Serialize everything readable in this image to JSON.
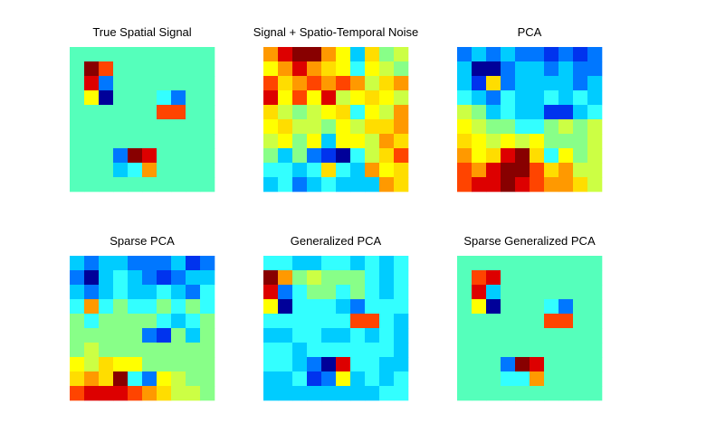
{
  "chart_data": [
    {
      "type": "heatmap",
      "title": "True Spatial Signal",
      "colors": [
        [
          "#5fb",
          "#5fb",
          "#5fb",
          "#5fb",
          "#5fb",
          "#5fb",
          "#5fb",
          "#5fb",
          "#5fb",
          "#5fb"
        ],
        [
          "#5fb",
          "#800",
          "#f40",
          "#5fb",
          "#5fb",
          "#5fb",
          "#5fb",
          "#5fb",
          "#5fb",
          "#5fb"
        ],
        [
          "#5fb",
          "#d00",
          "#07f",
          "#5fb",
          "#5fb",
          "#5fb",
          "#5fb",
          "#5fb",
          "#5fb",
          "#5fb"
        ],
        [
          "#5fb",
          "#ff0",
          "#009",
          "#5fb",
          "#5fb",
          "#5fb",
          "#3ff",
          "#07f",
          "#5fb",
          "#5fb"
        ],
        [
          "#5fb",
          "#5fb",
          "#5fb",
          "#5fb",
          "#5fb",
          "#5fb",
          "#f40",
          "#f40",
          "#5fb",
          "#5fb"
        ],
        [
          "#5fb",
          "#5fb",
          "#5fb",
          "#5fb",
          "#5fb",
          "#5fb",
          "#5fb",
          "#5fb",
          "#5fb",
          "#5fb"
        ],
        [
          "#5fb",
          "#5fb",
          "#5fb",
          "#5fb",
          "#5fb",
          "#5fb",
          "#5fb",
          "#5fb",
          "#5fb",
          "#5fb"
        ],
        [
          "#5fb",
          "#5fb",
          "#5fb",
          "#07f",
          "#800",
          "#d00",
          "#5fb",
          "#5fb",
          "#5fb",
          "#5fb"
        ],
        [
          "#5fb",
          "#5fb",
          "#5fb",
          "#0cf",
          "#3ff",
          "#f90",
          "#5fb",
          "#5fb",
          "#5fb",
          "#5fb"
        ],
        [
          "#5fb",
          "#5fb",
          "#5fb",
          "#5fb",
          "#5fb",
          "#5fb",
          "#5fb",
          "#5fb",
          "#5fb",
          "#5fb"
        ]
      ]
    },
    {
      "type": "heatmap",
      "title": "Signal + Spatio-Temporal Noise",
      "colors": [
        [
          "#f90",
          "#d00",
          "#800",
          "#800",
          "#f90",
          "#ff0",
          "#0cf",
          "#fd0",
          "#8f8",
          "#cf4"
        ],
        [
          "#ff0",
          "#f90",
          "#d00",
          "#f90",
          "#fd0",
          "#ff0",
          "#3ff",
          "#ff0",
          "#cf4",
          "#8f8"
        ],
        [
          "#f40",
          "#fd0",
          "#f90",
          "#f40",
          "#f90",
          "#f40",
          "#f90",
          "#cf4",
          "#fd0",
          "#f90"
        ],
        [
          "#d00",
          "#ff0",
          "#f40",
          "#ff0",
          "#d00",
          "#cf4",
          "#ff0",
          "#fd0",
          "#ff0",
          "#cf4"
        ],
        [
          "#fd0",
          "#cf4",
          "#8f8",
          "#cf4",
          "#ff0",
          "#fd0",
          "#3ff",
          "#ff0",
          "#cf4",
          "#f90"
        ],
        [
          "#ff0",
          "#fd0",
          "#cf4",
          "#cf4",
          "#8f8",
          "#ff0",
          "#cf4",
          "#fd0",
          "#fd0",
          "#f90"
        ],
        [
          "#cf4",
          "#ff0",
          "#8f8",
          "#ff0",
          "#0cf",
          "#ff0",
          "#ff0",
          "#cf4",
          "#f90",
          "#fd0"
        ],
        [
          "#8f8",
          "#0cf",
          "#8f8",
          "#07f",
          "#03e",
          "#009",
          "#3ff",
          "#cf4",
          "#fd0",
          "#f40"
        ],
        [
          "#3ff",
          "#3ff",
          "#0cf",
          "#3ff",
          "#fd0",
          "#3ff",
          "#0cf",
          "#f90",
          "#ff0",
          "#fd0"
        ],
        [
          "#0cf",
          "#3ff",
          "#07f",
          "#0cf",
          "#3ff",
          "#0cf",
          "#0cf",
          "#0cf",
          "#f90",
          "#fd0"
        ]
      ]
    },
    {
      "type": "heatmap",
      "title": "PCA",
      "colors": [
        [
          "#07f",
          "#0cf",
          "#07f",
          "#0cf",
          "#07f",
          "#07f",
          "#03e",
          "#07f",
          "#03e",
          "#07f"
        ],
        [
          "#0cf",
          "#009",
          "#009",
          "#07f",
          "#0cf",
          "#0cf",
          "#07f",
          "#0cf",
          "#07f",
          "#07f"
        ],
        [
          "#0cf",
          "#03e",
          "#fd0",
          "#07f",
          "#0cf",
          "#0cf",
          "#0cf",
          "#0cf",
          "#07f",
          "#0cf"
        ],
        [
          "#3ff",
          "#0cf",
          "#07f",
          "#3ff",
          "#0cf",
          "#0cf",
          "#3ff",
          "#0cf",
          "#3ff",
          "#0cf"
        ],
        [
          "#cf4",
          "#8f8",
          "#0cf",
          "#3ff",
          "#0cf",
          "#0cf",
          "#03e",
          "#03e",
          "#0cf",
          "#3ff"
        ],
        [
          "#ff0",
          "#cf4",
          "#8f8",
          "#8f8",
          "#3ff",
          "#3ff",
          "#8f8",
          "#cf4",
          "#8f8",
          "#cf4"
        ],
        [
          "#fd0",
          "#ff0",
          "#cf4",
          "#ff0",
          "#cf4",
          "#ff0",
          "#8f8",
          "#8f8",
          "#8f8",
          "#cf4"
        ],
        [
          "#f90",
          "#ff0",
          "#fd0",
          "#d00",
          "#800",
          "#fd0",
          "#3ff",
          "#ff0",
          "#8f8",
          "#cf4"
        ],
        [
          "#f40",
          "#f90",
          "#d00",
          "#800",
          "#800",
          "#f40",
          "#fd0",
          "#f90",
          "#cf4",
          "#cf4"
        ],
        [
          "#f40",
          "#d00",
          "#d00",
          "#800",
          "#d00",
          "#f40",
          "#f90",
          "#f90",
          "#fd0",
          "#cf4"
        ]
      ]
    },
    {
      "type": "heatmap",
      "title": "Sparse PCA",
      "colors": [
        [
          "#0cf",
          "#07f",
          "#0cf",
          "#0cf",
          "#07f",
          "#07f",
          "#07f",
          "#0cf",
          "#03e",
          "#07f"
        ],
        [
          "#07f",
          "#009",
          "#0cf",
          "#3ff",
          "#0cf",
          "#07f",
          "#03e",
          "#07f",
          "#0cf",
          "#0cf"
        ],
        [
          "#0cf",
          "#07f",
          "#0cf",
          "#3ff",
          "#0cf",
          "#0cf",
          "#3ff",
          "#0cf",
          "#07f",
          "#3ff"
        ],
        [
          "#3ff",
          "#f90",
          "#3ff",
          "#8f8",
          "#3ff",
          "#3ff",
          "#8f8",
          "#3ff",
          "#8f8",
          "#3ff"
        ],
        [
          "#8f8",
          "#3ff",
          "#8f8",
          "#8f8",
          "#8f8",
          "#8f8",
          "#3ff",
          "#0cf",
          "#3ff",
          "#8f8"
        ],
        [
          "#8f8",
          "#8f8",
          "#8f8",
          "#8f8",
          "#8f8",
          "#07f",
          "#03e",
          "#8f8",
          "#0cf",
          "#8f8"
        ],
        [
          "#8f8",
          "#cf4",
          "#8f8",
          "#8f8",
          "#8f8",
          "#8f8",
          "#8f8",
          "#8f8",
          "#8f8",
          "#8f8"
        ],
        [
          "#ff0",
          "#cf4",
          "#fd0",
          "#ff0",
          "#ff0",
          "#8f8",
          "#8f8",
          "#8f8",
          "#8f8",
          "#8f8"
        ],
        [
          "#fd0",
          "#f90",
          "#fd0",
          "#800",
          "#3ff",
          "#07f",
          "#ff0",
          "#cf4",
          "#8f8",
          "#8f8"
        ],
        [
          "#f40",
          "#d00",
          "#d00",
          "#d00",
          "#f40",
          "#f90",
          "#fd0",
          "#cf4",
          "#cf4",
          "#8f8"
        ]
      ]
    },
    {
      "type": "heatmap",
      "title": "Generalized PCA",
      "colors": [
        [
          "#3ff",
          "#3ff",
          "#0cf",
          "#0cf",
          "#3ff",
          "#3ff",
          "#0cf",
          "#3ff",
          "#0cf",
          "#3ff"
        ],
        [
          "#800",
          "#f90",
          "#8f8",
          "#cf4",
          "#8f8",
          "#8f8",
          "#8f8",
          "#3ff",
          "#0cf",
          "#3ff"
        ],
        [
          "#d00",
          "#07f",
          "#3ff",
          "#8f8",
          "#8f8",
          "#3ff",
          "#8f8",
          "#3ff",
          "#0cf",
          "#3ff"
        ],
        [
          "#ff0",
          "#009",
          "#3ff",
          "#3ff",
          "#3ff",
          "#0cf",
          "#07f",
          "#3ff",
          "#3ff",
          "#3ff"
        ],
        [
          "#3ff",
          "#3ff",
          "#3ff",
          "#3ff",
          "#3ff",
          "#3ff",
          "#f40",
          "#f40",
          "#3ff",
          "#0cf"
        ],
        [
          "#0cf",
          "#0cf",
          "#3ff",
          "#3ff",
          "#0cf",
          "#0cf",
          "#3ff",
          "#0cf",
          "#3ff",
          "#0cf"
        ],
        [
          "#3ff",
          "#3ff",
          "#0cf",
          "#3ff",
          "#3ff",
          "#3ff",
          "#3ff",
          "#3ff",
          "#3ff",
          "#0cf"
        ],
        [
          "#3ff",
          "#3ff",
          "#0cf",
          "#07f",
          "#009",
          "#d00",
          "#3ff",
          "#3ff",
          "#0cf",
          "#0cf"
        ],
        [
          "#0cf",
          "#0cf",
          "#3ff",
          "#03e",
          "#07f",
          "#ff0",
          "#0cf",
          "#3ff",
          "#0cf",
          "#3ff"
        ],
        [
          "#0cf",
          "#0cf",
          "#0cf",
          "#0cf",
          "#0cf",
          "#0cf",
          "#0cf",
          "#0cf",
          "#3ff",
          "#3ff"
        ]
      ]
    },
    {
      "type": "heatmap",
      "title": "Sparse Generalized PCA",
      "colors": [
        [
          "#5fb",
          "#5fb",
          "#5fb",
          "#5fb",
          "#5fb",
          "#5fb",
          "#5fb",
          "#5fb",
          "#5fb",
          "#5fb"
        ],
        [
          "#5fb",
          "#f40",
          "#d00",
          "#5fb",
          "#5fb",
          "#5fb",
          "#5fb",
          "#5fb",
          "#5fb",
          "#5fb"
        ],
        [
          "#5fb",
          "#d00",
          "#0cf",
          "#5fb",
          "#5fb",
          "#5fb",
          "#5fb",
          "#5fb",
          "#5fb",
          "#5fb"
        ],
        [
          "#5fb",
          "#ff0",
          "#009",
          "#5fb",
          "#5fb",
          "#5fb",
          "#3ff",
          "#07f",
          "#5fb",
          "#5fb"
        ],
        [
          "#5fb",
          "#5fb",
          "#5fb",
          "#5fb",
          "#5fb",
          "#5fb",
          "#f40",
          "#f40",
          "#5fb",
          "#5fb"
        ],
        [
          "#5fb",
          "#5fb",
          "#5fb",
          "#5fb",
          "#5fb",
          "#5fb",
          "#5fb",
          "#5fb",
          "#5fb",
          "#5fb"
        ],
        [
          "#5fb",
          "#5fb",
          "#5fb",
          "#5fb",
          "#5fb",
          "#5fb",
          "#5fb",
          "#5fb",
          "#5fb",
          "#5fb"
        ],
        [
          "#5fb",
          "#5fb",
          "#5fb",
          "#07f",
          "#800",
          "#d00",
          "#5fb",
          "#5fb",
          "#5fb",
          "#5fb"
        ],
        [
          "#5fb",
          "#5fb",
          "#5fb",
          "#3ff",
          "#3ff",
          "#f90",
          "#5fb",
          "#5fb",
          "#5fb",
          "#5fb"
        ],
        [
          "#5fb",
          "#5fb",
          "#5fb",
          "#5fb",
          "#5fb",
          "#5fb",
          "#5fb",
          "#5fb",
          "#5fb",
          "#5fb"
        ]
      ]
    }
  ]
}
